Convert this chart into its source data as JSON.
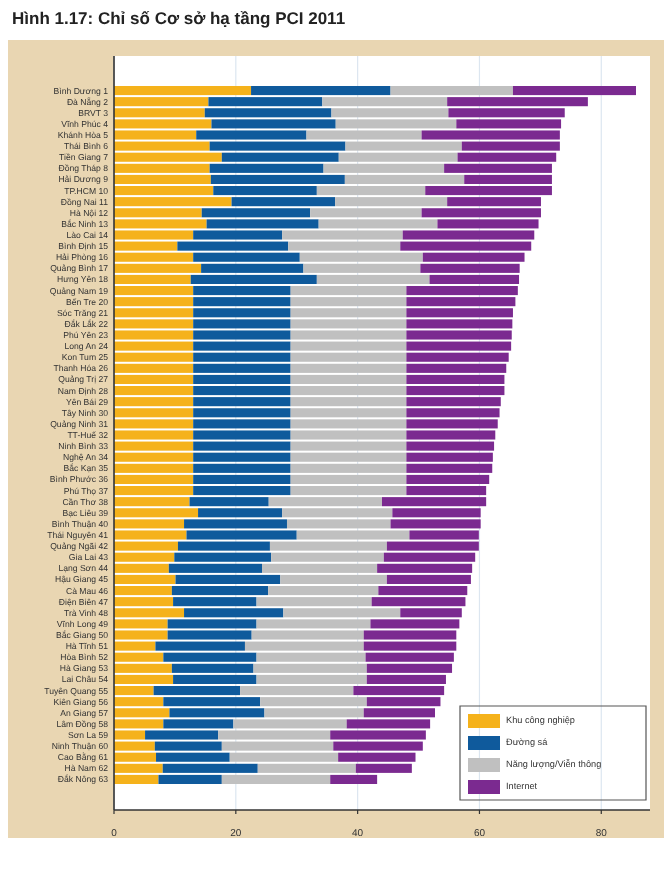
{
  "chart_data": {
    "type": "bar",
    "orientation": "horizontal",
    "stacked": true,
    "title": "Hình 1.17:  Chỉ số Cơ sở hạ tầng PCI 2011",
    "categories": [
      "Bình Dương 1",
      "Đà Nẵng 2",
      "BRVT 3",
      "Vĩnh Phúc 4",
      "Khánh Hòa 5",
      "Thái Bình 6",
      "Tiền Giang 7",
      "Đồng Tháp 8",
      "Hải Dương 9",
      "TP.HCM 10",
      "Đồng Nai 11",
      "Hà Nội 12",
      "Bắc Ninh 13",
      "Lào Cai 14",
      "Bình Định 15",
      "Hải Phòng 16",
      "Quảng Bình 17",
      "Hưng Yên 18",
      "Quảng Nam 19",
      "Bến Tre 20",
      "Sóc Trăng 21",
      "Đắk Lắk 22",
      "Phú Yên 23",
      "Long An 24",
      "Kon Tum 25",
      "Thanh Hóa 26",
      "Quảng Trị 27",
      "Nam Định 28",
      "Yên Bái 29",
      "Tây Ninh 30",
      "Quảng Ninh 31",
      "TT-Huế 32",
      "Ninh Bình 33",
      "Nghệ An 34",
      "Bắc Kạn 35",
      "Bình Phước 36",
      "Phú Thọ 37",
      "Cần Thơ 38",
      "Bạc Liêu 39",
      "Bình Thuận 40",
      "Thái Nguyên 41",
      "Quảng Ngãi 42",
      "Gia Lai 43",
      "Lạng Sơn 44",
      "Hậu Giang 45",
      "Cà Mau 46",
      "Điện Biên 47",
      "Trà Vinh 48",
      "Vĩnh Long 49",
      "Bắc Giang 50",
      "Hà Tĩnh 51",
      "Hòa Bình 52",
      "Hà Giang 53",
      "Lai Châu 54",
      "Tuyên Quang 55",
      "Kiên Giang 56",
      "An Giang 57",
      "Lâm Đồng 58",
      "Sơn La 59",
      "Ninh Thuận 60",
      "Cao Bằng 61",
      "Hà Nam 62",
      "Đắk Nông 63"
    ],
    "series": [
      {
        "name": "Khu công nghiệp",
        "color": "#f5b21b",
        "values": [
          22.5,
          15.5,
          14.9,
          16.0,
          13.5,
          15.7,
          17.7,
          15.7,
          15.9,
          16.3,
          19.3,
          14.4,
          15.2,
          13.0,
          10.4,
          13.0,
          14.3,
          12.6,
          13,
          13,
          13,
          13,
          13,
          13,
          13,
          13,
          13,
          13,
          13,
          13,
          13,
          13,
          13,
          13,
          13,
          13,
          13,
          12.4,
          13.8,
          11.5,
          11.9,
          10.5,
          9.9,
          9.0,
          10.1,
          9.5,
          9.7,
          11.5,
          8.8,
          8.8,
          6.8,
          8.1,
          9.5,
          9.7,
          6.5,
          8.1,
          9.1,
          8.1,
          5.1,
          6.7,
          6.9,
          8.0,
          7.3
        ]
      },
      {
        "name": "Đường sá",
        "color": "#0f5a9c",
        "values": [
          22.9,
          18.7,
          20.8,
          20.4,
          18.1,
          22.3,
          19.2,
          18.7,
          22.0,
          17.0,
          17.0,
          17.8,
          18.4,
          14.6,
          18.2,
          17.5,
          16.8,
          20.7,
          16,
          16,
          16,
          16,
          16,
          16,
          16,
          16,
          16,
          16,
          16,
          16,
          16,
          16,
          16,
          16,
          16,
          16,
          16,
          13.0,
          13.8,
          16.9,
          18.1,
          15.1,
          15.9,
          15.3,
          17.2,
          15.8,
          13.7,
          16.3,
          14.6,
          13.8,
          14.7,
          15.3,
          13.4,
          13.7,
          14.2,
          15.9,
          15.6,
          11.5,
          12.0,
          11.0,
          12.1,
          15.6,
          10.4
        ]
      },
      {
        "name": "Năng lượng/Viễn thông",
        "color": "#c0c0c0",
        "values": [
          20.1,
          20.5,
          19.2,
          19.8,
          18.9,
          19.1,
          19.5,
          19.8,
          19.6,
          17.8,
          18.4,
          18.3,
          19.5,
          19.8,
          18.4,
          20.2,
          19.2,
          18.5,
          19,
          19,
          19,
          19,
          19,
          19,
          19,
          19,
          19,
          19,
          19,
          19,
          19,
          19,
          19,
          19,
          19,
          19,
          19,
          18.6,
          18.1,
          17.0,
          18.5,
          19.2,
          18.5,
          18.9,
          17.5,
          18.1,
          18.9,
          19.2,
          18.7,
          18.4,
          19.5,
          17.9,
          18.6,
          18.1,
          18.6,
          17.5,
          16.3,
          18.6,
          18.4,
          18.3,
          17.8,
          16.1,
          17.8
        ]
      },
      {
        "name": "Internet",
        "color": "#7b2a90",
        "values": [
          20.2,
          23.1,
          19.1,
          17.2,
          22.7,
          16.1,
          16.2,
          17.7,
          14.4,
          20.8,
          15.4,
          19.6,
          16.6,
          21.6,
          21.5,
          16.7,
          16.3,
          14.7,
          18.3,
          17.9,
          17.5,
          17.4,
          17.3,
          17.2,
          16.8,
          16.4,
          16.1,
          16.1,
          15.5,
          15.3,
          15.0,
          14.6,
          14.4,
          14.2,
          14.1,
          13.6,
          13.1,
          17.1,
          14.5,
          14.8,
          11.4,
          15.1,
          15.0,
          15.6,
          13.8,
          14.6,
          15.4,
          10.1,
          14.6,
          15.2,
          15.2,
          14.5,
          14.0,
          13.0,
          14.9,
          12.1,
          11.7,
          13.7,
          15.7,
          14.7,
          12.7,
          9.2,
          7.7
        ]
      }
    ],
    "xlim": [
      0,
      88
    ],
    "xticks": [
      0,
      20,
      40,
      60,
      80
    ],
    "grid": "x",
    "legend": "bottom right"
  }
}
